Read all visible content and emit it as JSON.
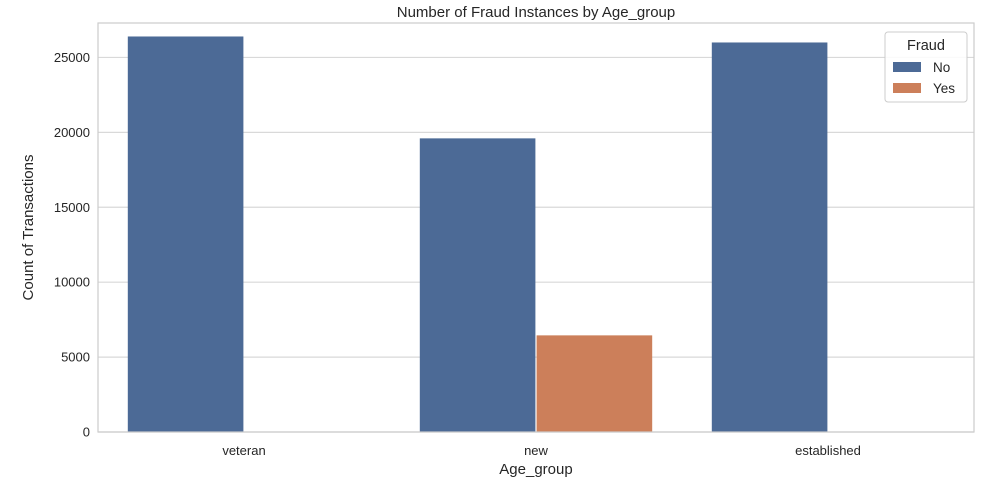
{
  "chart_data": {
    "type": "bar",
    "title": "Number of Fraud Instances by Age_group",
    "xlabel": "Age_group",
    "ylabel": "Count of Transactions",
    "categories": [
      "veteran",
      "new",
      "established"
    ],
    "series": [
      {
        "name": "No",
        "values": [
          26400,
          19600,
          26000
        ],
        "color": "#4c6a96"
      },
      {
        "name": "Yes",
        "values": [
          0,
          6450,
          0
        ],
        "color": "#cc7f5a"
      }
    ],
    "ylim": [
      0,
      27300
    ],
    "yticks": [
      0,
      5000,
      10000,
      15000,
      20000,
      25000
    ],
    "grid": true,
    "legend": {
      "title": "Fraud",
      "placement": "top-right"
    }
  }
}
